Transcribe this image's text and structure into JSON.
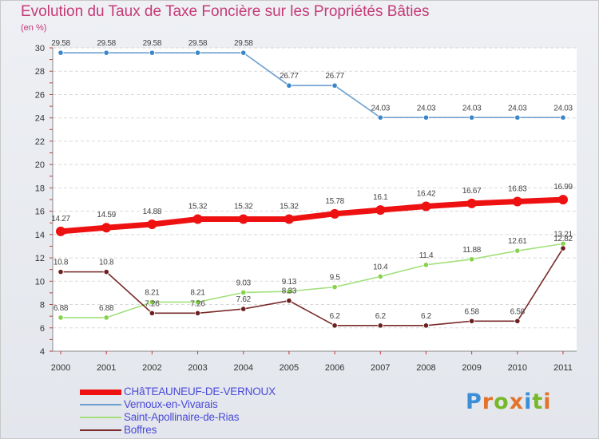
{
  "title": "Evolution du Taux de Taxe Foncière sur les Propriétés Bâties",
  "subtitle": "(en %)",
  "logo": {
    "letters": [
      "P",
      "r",
      "o",
      "x",
      "i",
      "t",
      "i"
    ],
    "colors": [
      "#3b8fd6",
      "#e3732b",
      "#77b82a",
      "#e3732b",
      "#3b8fd6",
      "#77b82a",
      "#e3732b"
    ]
  },
  "chart_data": {
    "type": "line",
    "title": "Evolution du Taux de Taxe Foncière sur les Propriétés Bâties",
    "ylabel": "(en %)",
    "x": [
      "2000",
      "2001",
      "2002",
      "2003",
      "2004",
      "2005",
      "2006",
      "2007",
      "2008",
      "2009",
      "2010",
      "2011"
    ],
    "ylim": [
      4,
      30
    ],
    "yticks": [
      "4",
      "6",
      "8",
      "10",
      "12",
      "14",
      "16",
      "18",
      "20",
      "22",
      "24",
      "26",
      "28",
      "30"
    ],
    "grid": "horizontal",
    "legend_position": "bottom-left",
    "series": [
      {
        "name": "CHâTEAUNEUF-DE-VERNOUX",
        "color": "#ee1111",
        "values": [
          14.27,
          14.59,
          14.88,
          15.32,
          15.32,
          15.32,
          15.78,
          16.1,
          16.42,
          16.67,
          16.83,
          16.99
        ],
        "labels": [
          "14.27",
          "14.59",
          "14.88",
          "15.32",
          "15.32",
          "15.32",
          "15.78",
          "16.1",
          "16.42",
          "16.67",
          "16.83",
          "16.99"
        ]
      },
      {
        "name": "Vernoux-en-Vivarais",
        "color": "#6a9fd0",
        "values": [
          29.58,
          29.58,
          29.58,
          29.58,
          29.58,
          26.77,
          26.77,
          24.03,
          24.03,
          24.03,
          24.03,
          24.03
        ],
        "labels": [
          "29.58",
          "29.58",
          "29.58",
          "29.58",
          "29.58",
          "26.77",
          "26.77",
          "24.03",
          "24.03",
          "24.03",
          "24.03",
          "24.03"
        ]
      },
      {
        "name": "Saint-Apollinaire-de-Rias",
        "color": "#a3e07c",
        "values": [
          6.88,
          6.88,
          8.21,
          8.21,
          9.03,
          9.13,
          9.5,
          10.4,
          11.4,
          11.88,
          12.61,
          13.21
        ],
        "labels": [
          "6.88",
          "6.88",
          "8.21",
          "8.21",
          "9.03",
          "9.13",
          "9.5",
          "10.4",
          "11.4",
          "11.88",
          "12.61",
          "13.21"
        ]
      },
      {
        "name": "Boffres",
        "color": "#7a2a2a",
        "values": [
          10.8,
          10.8,
          7.26,
          7.26,
          7.62,
          8.33,
          6.2,
          6.2,
          6.2,
          6.58,
          6.58,
          12.82
        ],
        "labels": [
          "10.8",
          "10.8",
          "7.26",
          "7.26",
          "7.62",
          "8.33",
          "6.2",
          "6.2",
          "6.2",
          "6.58",
          "6.58",
          "12.82"
        ]
      }
    ]
  }
}
